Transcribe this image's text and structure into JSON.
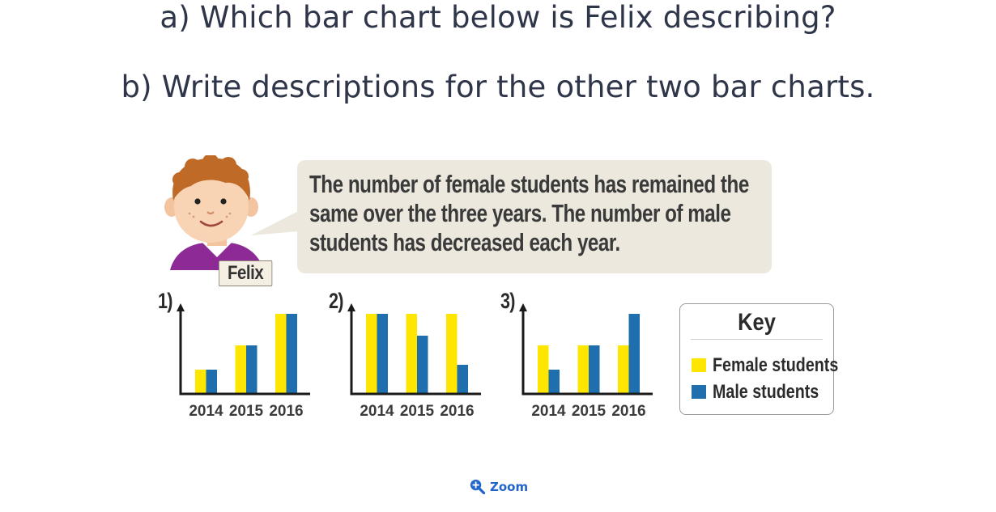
{
  "questions": {
    "a": "a) Which bar chart below is Felix describing?",
    "b": "b) Write descriptions for the other two bar charts."
  },
  "speaker": {
    "name": "Felix",
    "speech_lines": [
      "The number of female students has remained the",
      "same over the three years. The number of male",
      "students has decreased each year."
    ]
  },
  "colors": {
    "female": "#ffe600",
    "male": "#1f6fae",
    "axis": "#1a1a1a",
    "bubble": "#ece8dd",
    "link": "#2266cc"
  },
  "chart_data": [
    {
      "type": "bar",
      "label": "1)",
      "categories": [
        "2014",
        "2015",
        "2016"
      ],
      "series": [
        {
          "name": "Female students",
          "values": [
            1,
            2,
            3.3
          ]
        },
        {
          "name": "Male students",
          "values": [
            1,
            2,
            3.3
          ]
        }
      ],
      "ylim": [
        0,
        3.6
      ]
    },
    {
      "type": "bar",
      "label": "2)",
      "categories": [
        "2014",
        "2015",
        "2016"
      ],
      "series": [
        {
          "name": "Female students",
          "values": [
            3.3,
            3.3,
            3.3
          ]
        },
        {
          "name": "Male students",
          "values": [
            3.3,
            2.4,
            1.2
          ]
        }
      ],
      "ylim": [
        0,
        3.6
      ]
    },
    {
      "type": "bar",
      "label": "3)",
      "categories": [
        "2014",
        "2015",
        "2016"
      ],
      "series": [
        {
          "name": "Female students",
          "values": [
            2,
            2,
            2
          ]
        },
        {
          "name": "Male students",
          "values": [
            1,
            2,
            3.3
          ]
        }
      ],
      "ylim": [
        0,
        3.6
      ]
    }
  ],
  "key": {
    "title": "Key",
    "items": [
      {
        "label": "Female students",
        "color": "#ffe600"
      },
      {
        "label": "Male students",
        "color": "#1f6fae"
      }
    ]
  },
  "zoom": {
    "label": "Zoom",
    "icon": "zoom-in-icon"
  }
}
